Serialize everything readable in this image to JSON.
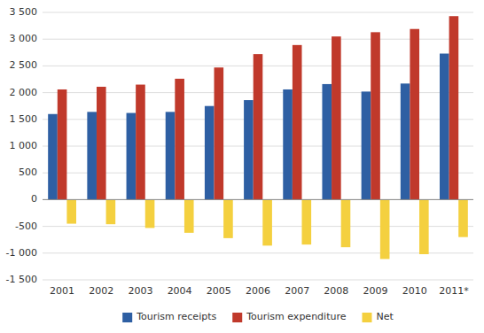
{
  "chart_data": {
    "type": "bar",
    "categories": [
      "2001",
      "2002",
      "2003",
      "2004",
      "2005",
      "2006",
      "2007",
      "2008",
      "2009",
      "2010",
      "2011*"
    ],
    "series": [
      {
        "name": "Tourism receipts",
        "color": "#2E5FA3",
        "values": [
          1600,
          1640,
          1620,
          1640,
          1750,
          1860,
          2060,
          2160,
          2020,
          2170,
          2730
        ]
      },
      {
        "name": "Tourism expenditure",
        "color": "#C0392B",
        "values": [
          2060,
          2110,
          2150,
          2260,
          2470,
          2720,
          2890,
          3050,
          3130,
          3190,
          3430
        ]
      },
      {
        "name": "Net",
        "color": "#F4D03F",
        "values": [
          -450,
          -460,
          -530,
          -620,
          -720,
          -860,
          -840,
          -890,
          -1110,
          -1020,
          -700
        ]
      }
    ],
    "ylim": [
      -1500,
      3500
    ],
    "yticks": [
      {
        "value": -1500,
        "label": "-1 500"
      },
      {
        "value": -1000,
        "label": "-1 000"
      },
      -500,
      0,
      500,
      {
        "value": 1000,
        "label": "1 000"
      },
      {
        "value": 1500,
        "label": "1 500"
      },
      {
        "value": 2000,
        "label": "2 000"
      },
      {
        "value": 2500,
        "label": "2 500"
      },
      {
        "value": 3000,
        "label": "3 000"
      },
      {
        "value": 3500,
        "label": "3 500"
      }
    ],
    "grid": true,
    "legend": "bottom"
  }
}
